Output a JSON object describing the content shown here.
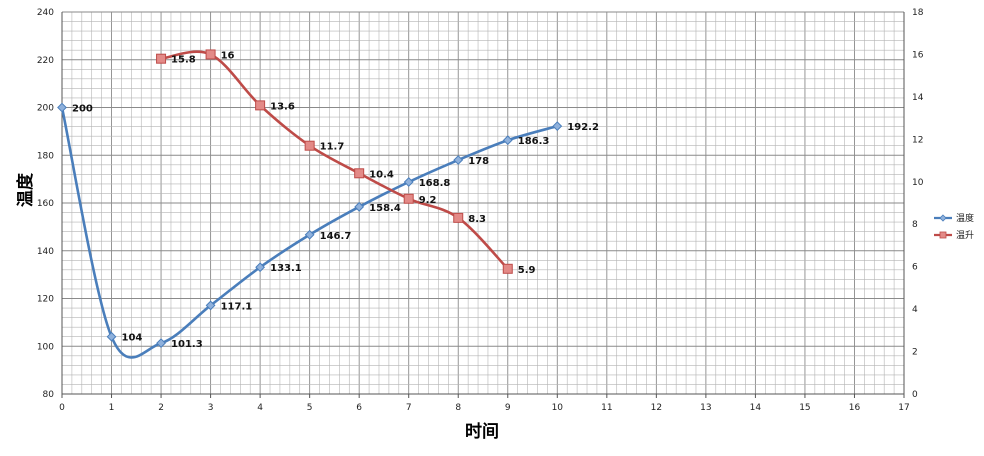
{
  "chart_data": {
    "type": "line",
    "xlabel": "时间",
    "ylabel": "温度",
    "xlim": [
      0,
      17
    ],
    "ylim": [
      80,
      240
    ],
    "y2lim": [
      0,
      18
    ],
    "x_ticks": [
      "0",
      "1",
      "2",
      "3",
      "4",
      "5",
      "6",
      "7",
      "8",
      "9",
      "10",
      "11",
      "12",
      "13",
      "14",
      "15",
      "16",
      "17"
    ],
    "y_ticks": [
      "80",
      "100",
      "120",
      "140",
      "160",
      "180",
      "200",
      "220",
      "240"
    ],
    "y2_ticks": [
      "0",
      "2",
      "4",
      "6",
      "8",
      "10",
      "12",
      "14",
      "16",
      "18"
    ],
    "grid": true,
    "legend_position": "right",
    "series": [
      {
        "name": "温度",
        "axis": "left",
        "color": "#4a7ebb",
        "marker": "diamond",
        "smooth": true,
        "x": [
          0,
          1,
          2,
          3,
          4,
          5,
          6,
          7,
          8,
          9,
          10
        ],
        "values": [
          200,
          104,
          101.3,
          117.1,
          133.1,
          146.7,
          158.4,
          168.8,
          178,
          186.3,
          192.2
        ],
        "labels": [
          "200",
          "104",
          "101.3",
          "117.1",
          "133.1",
          "146.7",
          "158.4",
          "168.8",
          "178",
          "186.3",
          "192.2"
        ]
      },
      {
        "name": "温升",
        "axis": "right",
        "color": "#be4b48",
        "marker": "square",
        "smooth": true,
        "x": [
          2,
          3,
          4,
          5,
          6,
          7,
          8,
          9
        ],
        "values": [
          15.8,
          16,
          13.6,
          11.7,
          10.4,
          9.2,
          8.3,
          5.9
        ],
        "labels": [
          "15.8",
          "16",
          "13.6",
          "11.7",
          "10.4",
          "9.2",
          "8.3",
          "5.9"
        ]
      }
    ]
  }
}
